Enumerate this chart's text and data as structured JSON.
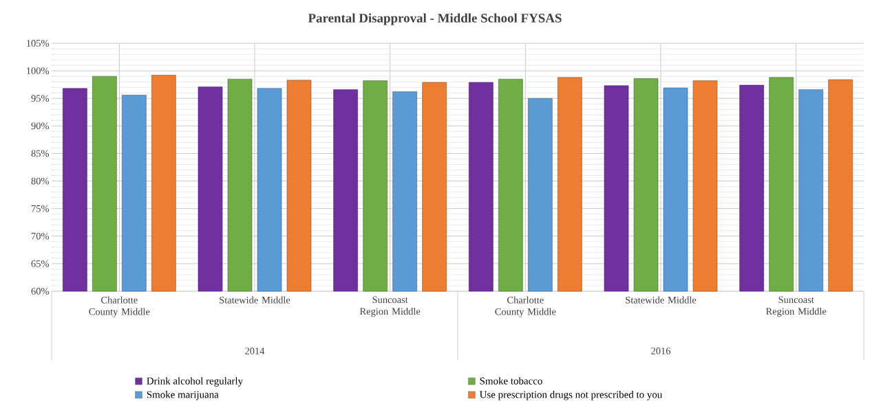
{
  "chart_data": {
    "type": "bar",
    "title": "Parental Disapproval - Middle School FYSAS",
    "categories": [
      "Charlotte County Middle",
      "Statewide Middle",
      "Suncoast Region Middle",
      "Charlotte County Middle",
      "Statewide Middle",
      "Suncoast Region Middle"
    ],
    "annotations": [
      "2014",
      "2016"
    ],
    "series": [
      {
        "name": "Drink alcohol regularly",
        "color": "#7030a0",
        "values": [
          96.8,
          97.1,
          96.6,
          97.9,
          97.3,
          97.4
        ]
      },
      {
        "name": "Smoke tobacco",
        "color": "#70ad47",
        "values": [
          99.0,
          98.5,
          98.2,
          98.5,
          98.6,
          98.8
        ]
      },
      {
        "name": "Smoke marijuana",
        "color": "#5b9bd5",
        "values": [
          95.6,
          96.8,
          96.2,
          95.0,
          96.9,
          96.6
        ]
      },
      {
        "name": "Use prescription drugs not prescribed to you",
        "color": "#ed7d31",
        "values": [
          99.2,
          98.3,
          97.9,
          98.8,
          98.2,
          98.4
        ]
      }
    ],
    "ylim": [
      60,
      105
    ],
    "yticks": [
      {
        "value": 60,
        "label": "60%"
      },
      {
        "value": 65,
        "label": "65%"
      },
      {
        "value": 70,
        "label": "70%"
      },
      {
        "value": 75,
        "label": "75%"
      },
      {
        "value": 80,
        "label": "80%"
      },
      {
        "value": 85,
        "label": "85%"
      },
      {
        "value": 90,
        "label": "90%"
      },
      {
        "value": 95,
        "label": "95%"
      },
      {
        "value": 100,
        "label": "100%"
      },
      {
        "value": 105,
        "label": "105%"
      }
    ],
    "grid": true,
    "legend": "bottom"
  }
}
